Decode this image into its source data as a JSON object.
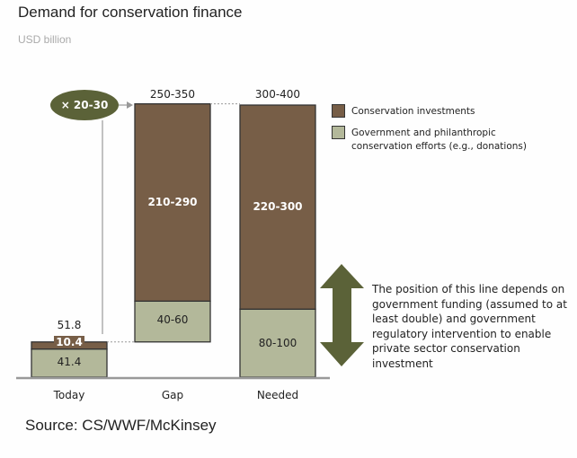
{
  "chart_data": {
    "type": "bar",
    "title": "Demand for conservation finance",
    "subtitle": "USD billion",
    "categories": [
      "Today",
      "Gap",
      "Needed"
    ],
    "series": [
      {
        "name": "Government and philanthropic conservation efforts (e.g., donations)",
        "color": "#b3b89a",
        "values": [
          {
            "low": 41.4,
            "high": 41.4,
            "label": "41.4"
          },
          {
            "low": 40,
            "high": 60,
            "label": "40-60"
          },
          {
            "low": 80,
            "high": 100,
            "label": "80-100"
          }
        ]
      },
      {
        "name": "Conservation investments",
        "color": "#775e47",
        "values": [
          {
            "low": 10.4,
            "high": 10.4,
            "label": "10.4"
          },
          {
            "low": 210,
            "high": 290,
            "label": "210-290"
          },
          {
            "low": 220,
            "high": 300,
            "label": "220-300"
          }
        ]
      }
    ],
    "totals": [
      "51.8",
      "250-350",
      "300-400"
    ],
    "gap_floats_from": 51.8,
    "multiplier_label": "× 20-30",
    "annotation": "The position of this line depends on government funding (assumed to at least double) and government regulatory intervention to enable private sector conservation investment",
    "legend_placement": "right",
    "grid": false,
    "source": "Source: CS/WWF/McKinsey"
  }
}
